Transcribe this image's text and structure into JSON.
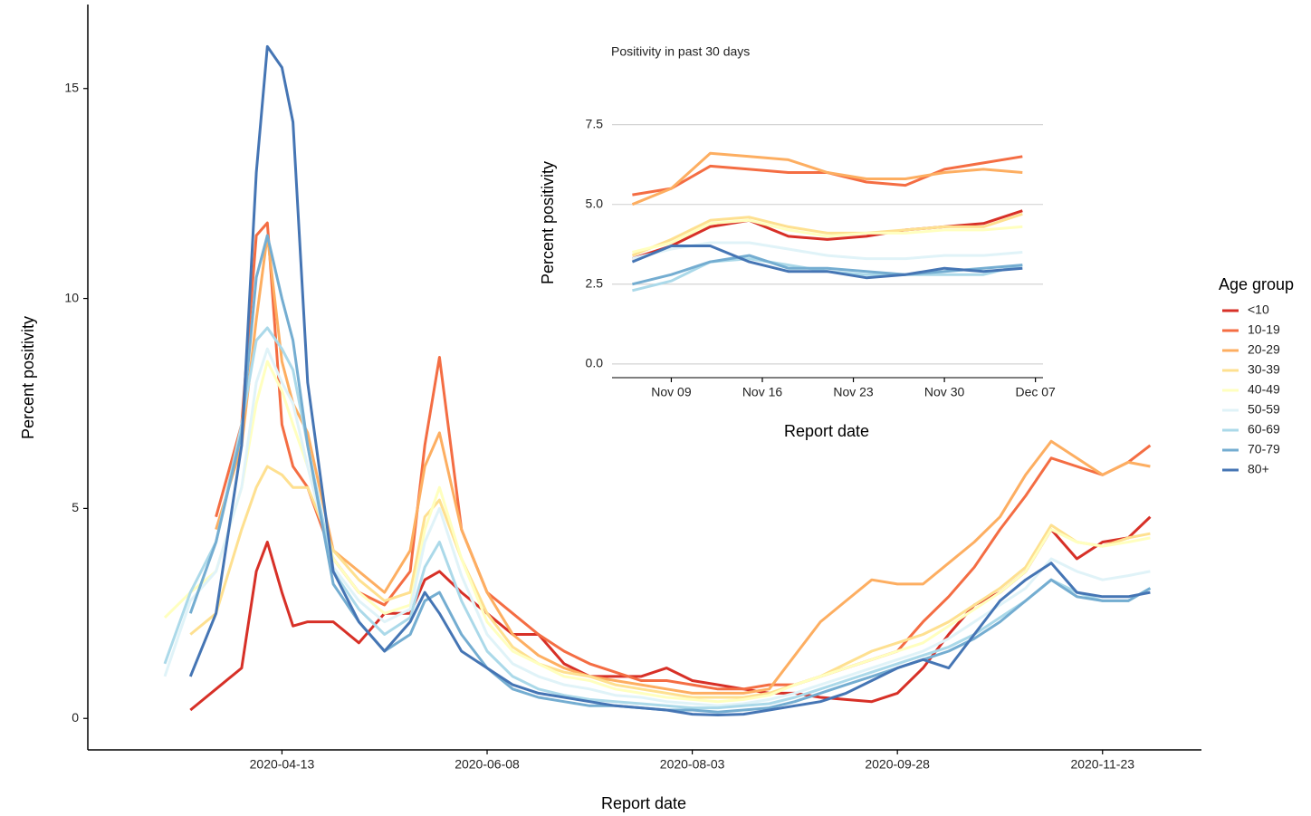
{
  "chart_data": [
    {
      "type": "line",
      "xlabel": "Report date",
      "ylabel": "Percent positivity",
      "legend_title": "Age group",
      "legend": "right",
      "grid": false,
      "x": [
        "2020-03-12",
        "2020-03-19",
        "2020-03-26",
        "2020-04-02",
        "2020-04-06",
        "2020-04-09",
        "2020-04-13",
        "2020-04-16",
        "2020-04-20",
        "2020-04-27",
        "2020-05-04",
        "2020-05-11",
        "2020-05-18",
        "2020-05-22",
        "2020-05-26",
        "2020-06-01",
        "2020-06-08",
        "2020-06-15",
        "2020-06-22",
        "2020-06-29",
        "2020-07-06",
        "2020-07-13",
        "2020-07-20",
        "2020-07-27",
        "2020-08-03",
        "2020-08-10",
        "2020-08-17",
        "2020-08-24",
        "2020-08-31",
        "2020-09-07",
        "2020-09-14",
        "2020-09-21",
        "2020-09-28",
        "2020-10-05",
        "2020-10-12",
        "2020-10-19",
        "2020-10-26",
        "2020-11-02",
        "2020-11-09",
        "2020-11-16",
        "2020-11-23",
        "2020-11-30",
        "2020-12-06"
      ],
      "xlim": [
        "2020-02-20",
        "2020-12-20"
      ],
      "xticks": [
        "2020-04-13",
        "2020-06-08",
        "2020-08-03",
        "2020-09-28",
        "2020-11-23"
      ],
      "ylim": [
        -0.75,
        17
      ],
      "yticks": [
        0,
        5,
        10,
        15
      ],
      "series": [
        {
          "name": "<10",
          "color": "#d73027",
          "values": [
            null,
            0.2,
            0.7,
            1.2,
            3.5,
            4.2,
            3.0,
            2.2,
            2.3,
            2.3,
            1.8,
            2.5,
            2.5,
            3.3,
            3.5,
            3.0,
            2.5,
            2.0,
            2.0,
            1.3,
            1.0,
            1.0,
            1.0,
            1.2,
            0.9,
            0.8,
            0.7,
            0.6,
            0.6,
            0.5,
            0.45,
            0.4,
            0.6,
            1.2,
            2.0,
            2.7,
            3.0,
            3.5,
            4.5,
            3.8,
            4.2,
            4.3,
            4.8
          ]
        },
        {
          "name": "10-19",
          "color": "#f46d43",
          "values": [
            null,
            null,
            4.8,
            7.0,
            11.5,
            11.8,
            7.0,
            6.0,
            5.5,
            3.8,
            3.0,
            2.7,
            3.5,
            6.5,
            8.6,
            4.5,
            3.0,
            2.5,
            2.0,
            1.6,
            1.3,
            1.1,
            0.9,
            0.9,
            0.8,
            0.7,
            0.7,
            0.8,
            0.8,
            1.0,
            1.2,
            1.4,
            1.6,
            2.3,
            2.9,
            3.6,
            4.5,
            5.3,
            6.2,
            6.0,
            5.8,
            6.1,
            6.5
          ]
        },
        {
          "name": "20-29",
          "color": "#fdae61",
          "values": [
            null,
            null,
            4.5,
            6.5,
            9.5,
            11.5,
            8.5,
            7.5,
            6.8,
            4.0,
            3.5,
            3.0,
            4.0,
            6.0,
            6.8,
            4.5,
            3.0,
            2.0,
            1.5,
            1.2,
            1.0,
            0.9,
            0.8,
            0.7,
            0.6,
            0.6,
            0.6,
            0.7,
            1.5,
            2.3,
            2.8,
            3.3,
            3.2,
            3.2,
            3.7,
            4.2,
            4.8,
            5.8,
            6.6,
            6.2,
            5.8,
            6.1,
            6.0
          ]
        },
        {
          "name": "30-39",
          "color": "#fee090",
          "values": [
            null,
            2.0,
            2.5,
            4.5,
            5.5,
            6.0,
            5.8,
            5.5,
            5.5,
            4.0,
            3.3,
            2.8,
            3.0,
            4.8,
            5.2,
            3.8,
            2.5,
            1.7,
            1.3,
            1.1,
            1.0,
            0.8,
            0.7,
            0.6,
            0.5,
            0.5,
            0.5,
            0.6,
            0.8,
            1.0,
            1.3,
            1.6,
            1.8,
            2.0,
            2.3,
            2.7,
            3.1,
            3.6,
            4.6,
            4.2,
            4.1,
            4.3,
            4.4
          ]
        },
        {
          "name": "40-49",
          "color": "#ffffbf",
          "values": [
            2.4,
            3.0,
            3.5,
            5.5,
            7.5,
            8.5,
            7.8,
            7.0,
            6.0,
            3.8,
            3.0,
            2.5,
            2.7,
            4.5,
            5.5,
            3.8,
            2.3,
            1.6,
            1.3,
            1.0,
            0.9,
            0.7,
            0.6,
            0.5,
            0.45,
            0.4,
            0.45,
            0.55,
            0.8,
            1.0,
            1.2,
            1.4,
            1.6,
            1.8,
            2.2,
            2.6,
            3.0,
            3.5,
            4.5,
            4.2,
            4.1,
            4.2,
            4.3
          ]
        },
        {
          "name": "50-59",
          "color": "#e0f3f8",
          "values": [
            1.0,
            2.8,
            3.5,
            5.5,
            8.0,
            8.8,
            8.0,
            7.5,
            6.0,
            3.6,
            2.8,
            2.3,
            2.6,
            4.2,
            5.0,
            3.4,
            2.0,
            1.3,
            1.0,
            0.8,
            0.7,
            0.55,
            0.5,
            0.4,
            0.35,
            0.3,
            0.35,
            0.45,
            0.6,
            0.8,
            1.0,
            1.2,
            1.4,
            1.6,
            1.9,
            2.3,
            2.7,
            3.1,
            3.8,
            3.5,
            3.3,
            3.4,
            3.5
          ]
        },
        {
          "name": "60-69",
          "color": "#abd9e9",
          "values": [
            1.3,
            3.0,
            4.2,
            7.0,
            9.0,
            9.3,
            8.8,
            8.3,
            6.5,
            3.5,
            2.6,
            2.0,
            2.4,
            3.6,
            4.2,
            2.8,
            1.6,
            1.0,
            0.7,
            0.55,
            0.45,
            0.4,
            0.35,
            0.3,
            0.25,
            0.25,
            0.3,
            0.35,
            0.5,
            0.7,
            0.9,
            1.1,
            1.3,
            1.5,
            1.7,
            2.0,
            2.4,
            2.8,
            3.3,
            3.0,
            2.8,
            2.8,
            3.1
          ]
        },
        {
          "name": "70-79",
          "color": "#74add1",
          "values": [
            null,
            2.5,
            4.2,
            6.8,
            10.5,
            11.5,
            10.0,
            9.0,
            6.5,
            3.2,
            2.3,
            1.6,
            2.0,
            2.8,
            3.0,
            2.0,
            1.2,
            0.7,
            0.5,
            0.4,
            0.3,
            0.3,
            0.25,
            0.2,
            0.2,
            0.15,
            0.2,
            0.25,
            0.4,
            0.6,
            0.8,
            1.0,
            1.2,
            1.4,
            1.6,
            1.9,
            2.3,
            2.8,
            3.3,
            2.9,
            2.8,
            2.8,
            3.1
          ]
        },
        {
          "name": "80+",
          "color": "#4575b4",
          "values": [
            null,
            1.0,
            2.5,
            6.5,
            13,
            16,
            15.5,
            14.2,
            8,
            3.5,
            2.3,
            1.6,
            2.3,
            3.0,
            2.5,
            1.6,
            1.2,
            0.8,
            0.6,
            0.5,
            0.4,
            0.3,
            0.25,
            0.2,
            0.1,
            0.08,
            0.1,
            0.2,
            0.3,
            0.4,
            0.6,
            0.9,
            1.2,
            1.4,
            1.2,
            2.0,
            2.8,
            3.3,
            3.7,
            3.0,
            2.9,
            2.9,
            3.0
          ]
        }
      ]
    },
    {
      "type": "line",
      "title": "Positivity in past 30 days",
      "xlabel": "Report date",
      "ylabel": "Percent positivity",
      "grid": true,
      "x": [
        "Nov 06",
        "Nov 09",
        "Nov 12",
        "Nov 15",
        "Nov 18",
        "Nov 21",
        "Nov 24",
        "Nov 27",
        "Nov 30",
        "Dec 03",
        "Dec 06"
      ],
      "xlim": [
        "Nov 05",
        "Dec 08"
      ],
      "xticks": [
        "Nov 09",
        "Nov 16",
        "Nov 23",
        "Nov 30",
        "Dec 07"
      ],
      "ylim": [
        -0.43,
        8
      ],
      "yticks": [
        {
          "value": 0,
          "label": "0.0"
        },
        2.5,
        {
          "value": 5,
          "label": "5.0"
        },
        7.5
      ],
      "series": [
        {
          "color": "#d73027",
          "values": [
            3.3,
            3.7,
            4.3,
            4.5,
            4.0,
            3.9,
            4.0,
            4.2,
            4.3,
            4.4,
            4.8
          ]
        },
        {
          "color": "#f46d43",
          "values": [
            5.3,
            5.5,
            6.2,
            6.1,
            6.0,
            6.0,
            5.7,
            5.6,
            6.1,
            6.3,
            6.5
          ]
        },
        {
          "color": "#fdae61",
          "values": [
            5.0,
            5.5,
            6.6,
            6.5,
            6.4,
            6.0,
            5.8,
            5.8,
            6.0,
            6.1,
            6.0
          ]
        },
        {
          "color": "#fee090",
          "values": [
            3.4,
            3.9,
            4.5,
            4.6,
            4.3,
            4.1,
            4.1,
            4.2,
            4.3,
            4.3,
            4.7
          ]
        },
        {
          "color": "#ffffbf",
          "values": [
            3.5,
            3.8,
            4.4,
            4.5,
            4.2,
            4.0,
            4.1,
            4.1,
            4.2,
            4.2,
            4.3
          ]
        },
        {
          "color": "#e0f3f8",
          "values": [
            3.3,
            3.6,
            3.8,
            3.8,
            3.6,
            3.4,
            3.3,
            3.3,
            3.4,
            3.4,
            3.5
          ]
        },
        {
          "color": "#abd9e9",
          "values": [
            2.3,
            2.6,
            3.2,
            3.3,
            3.1,
            2.9,
            2.8,
            2.8,
            2.8,
            2.8,
            3.1
          ]
        },
        {
          "color": "#74add1",
          "values": [
            2.5,
            2.8,
            3.2,
            3.4,
            3.0,
            3.0,
            2.9,
            2.8,
            2.9,
            3.0,
            3.1
          ]
        },
        {
          "color": "#4575b4",
          "values": [
            3.2,
            3.7,
            3.7,
            3.2,
            2.9,
            2.9,
            2.7,
            2.8,
            3.0,
            2.9,
            3.0
          ]
        }
      ]
    }
  ]
}
